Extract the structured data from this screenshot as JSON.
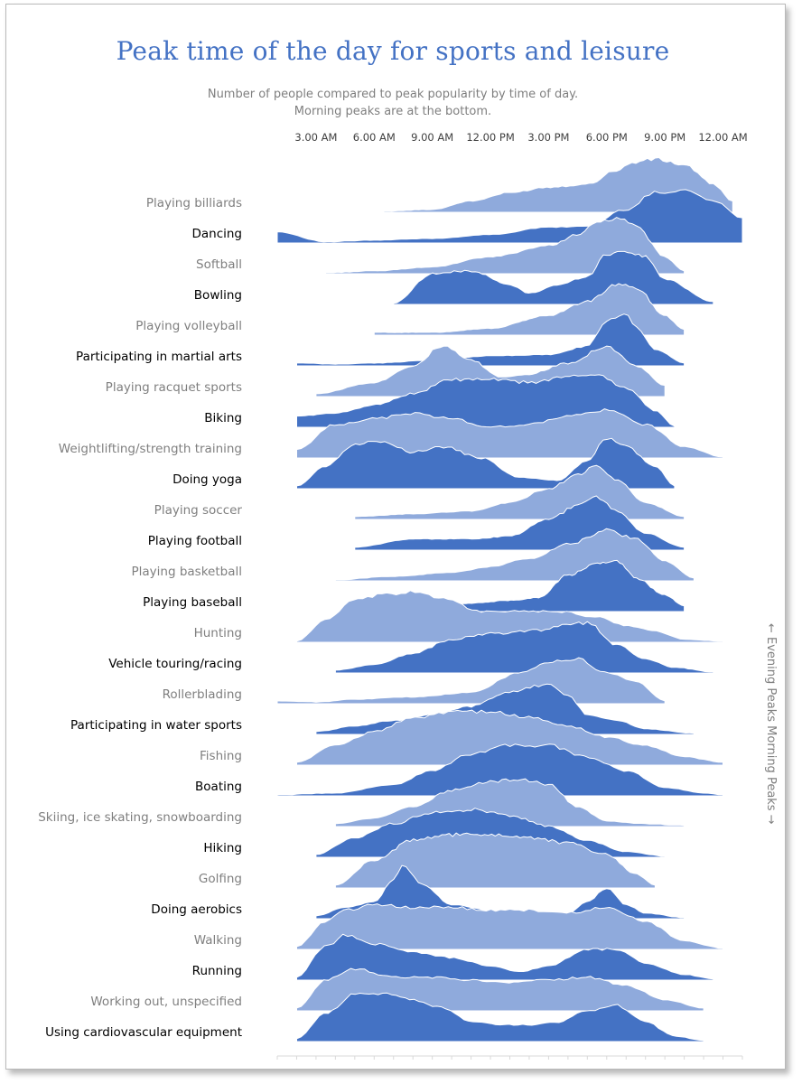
{
  "title": "Peak time of the day for sports and leisure",
  "subtitle_line1": "Number of people compared to peak popularity by time of day.",
  "subtitle_line2": "Morning peaks are at the bottom.",
  "side_label": "← Evening Peaks  Morning Peaks →",
  "colors": {
    "title": "#4472c4",
    "dark": "#4472c4",
    "light": "#8faadc",
    "label_light": "#7f7f7f",
    "label_dark": "#000000"
  },
  "chart_data": {
    "type": "area",
    "title": "Peak time of the day for sports and leisure",
    "x_ticks": [
      "3.00 AM",
      "6.00 AM",
      "9.00 AM",
      "12.00 PM",
      "3.00 PM",
      "6.00 PM",
      "9.00 PM",
      "12.00 AM"
    ],
    "x_tick_hours": [
      3,
      6,
      9,
      12,
      15,
      18,
      21,
      24
    ],
    "x_range_hours": [
      1,
      25
    ],
    "series": [
      {
        "name": "Playing billiards",
        "style": "light",
        "x": [
          6.5,
          9,
          11,
          13,
          15,
          17,
          18.5,
          19.5,
          20.5,
          22,
          23.5,
          24.5
        ],
        "y": [
          0.02,
          0.05,
          0.2,
          0.35,
          0.45,
          0.5,
          0.75,
          0.9,
          0.95,
          0.85,
          0.5,
          0.2
        ]
      },
      {
        "name": "Dancing",
        "style": "dark",
        "x": [
          1,
          3.5,
          6,
          9,
          12,
          15,
          17,
          19,
          20.5,
          22,
          23.5,
          25
        ],
        "y": [
          0.2,
          0.02,
          0.05,
          0.08,
          0.15,
          0.28,
          0.3,
          0.6,
          0.9,
          0.95,
          0.75,
          0.45
        ]
      },
      {
        "name": "Softball",
        "style": "light",
        "x": [
          3.5,
          6,
          9,
          12,
          15,
          16.5,
          17.5,
          18.5,
          19.5,
          21,
          22
        ],
        "y": [
          0.02,
          0.05,
          0.12,
          0.3,
          0.5,
          0.7,
          0.9,
          1.0,
          0.85,
          0.3,
          0.05
        ]
      },
      {
        "name": "Bowling",
        "style": "dark",
        "x": [
          7,
          9,
          11,
          13,
          14,
          15.5,
          17,
          18,
          19,
          20,
          21,
          23.5
        ],
        "y": [
          0.02,
          0.55,
          0.6,
          0.35,
          0.2,
          0.35,
          0.5,
          0.9,
          0.95,
          0.85,
          0.45,
          0.05
        ]
      },
      {
        "name": "Playing volleyball",
        "style": "light",
        "x": [
          6,
          9,
          12,
          15,
          17,
          18.5,
          19.5,
          21,
          22
        ],
        "y": [
          0.05,
          0.05,
          0.12,
          0.35,
          0.6,
          0.9,
          0.85,
          0.35,
          0.1
        ]
      },
      {
        "name": "Participating in martial arts",
        "style": "dark",
        "x": [
          2,
          4,
          6,
          9,
          12,
          15,
          17,
          18,
          19,
          19.5,
          20.5,
          22
        ],
        "y": [
          0.05,
          0.03,
          0.05,
          0.1,
          0.18,
          0.2,
          0.35,
          0.8,
          0.95,
          0.7,
          0.3,
          0.05
        ]
      },
      {
        "name": "Playing racquet sports",
        "style": "light",
        "x": [
          3,
          6,
          8,
          9.5,
          11,
          12.5,
          14,
          16,
          18,
          19.5,
          21
        ],
        "y": [
          0.05,
          0.25,
          0.55,
          0.9,
          0.65,
          0.35,
          0.4,
          0.6,
          0.9,
          0.55,
          0.2
        ]
      },
      {
        "name": "Biking",
        "style": "dark",
        "x": [
          2,
          4,
          6,
          8,
          10,
          12,
          14,
          16,
          17.5,
          19,
          20.5,
          21.5
        ],
        "y": [
          0.2,
          0.25,
          0.4,
          0.6,
          0.85,
          0.85,
          0.8,
          0.9,
          0.95,
          0.7,
          0.3,
          0.02
        ]
      },
      {
        "name": "Weightlifting/strength training",
        "style": "light",
        "x": [
          2,
          4,
          6,
          8,
          10,
          12,
          14,
          16,
          18,
          20,
          22,
          24
        ],
        "y": [
          0.15,
          0.6,
          0.7,
          0.8,
          0.7,
          0.55,
          0.6,
          0.75,
          0.85,
          0.6,
          0.2,
          0.02
        ]
      },
      {
        "name": "Doing yoga",
        "style": "dark",
        "x": [
          2,
          3.5,
          5,
          6.5,
          8,
          9.5,
          11.5,
          13.5,
          15.5,
          17,
          18,
          19,
          20.5,
          21.5
        ],
        "y": [
          0.05,
          0.4,
          0.8,
          0.85,
          0.65,
          0.75,
          0.55,
          0.2,
          0.15,
          0.5,
          0.9,
          0.75,
          0.4,
          0.05
        ]
      },
      {
        "name": "Playing soccer",
        "style": "light",
        "x": [
          5,
          8,
          11,
          13,
          15,
          16.5,
          17.5,
          18.5,
          20,
          22
        ],
        "y": [
          0.05,
          0.1,
          0.15,
          0.3,
          0.55,
          0.8,
          0.95,
          0.7,
          0.3,
          0.05
        ]
      },
      {
        "name": "Playing football",
        "style": "dark",
        "x": [
          5,
          8,
          11,
          13,
          15,
          16.5,
          17.5,
          18.5,
          20,
          22
        ],
        "y": [
          0.05,
          0.2,
          0.2,
          0.25,
          0.55,
          0.8,
          0.95,
          0.7,
          0.3,
          0.05
        ]
      },
      {
        "name": "Playing basketball",
        "style": "light",
        "x": [
          4,
          7,
          10,
          12,
          14,
          16,
          18,
          19.5,
          21,
          22.5
        ],
        "y": [
          0.02,
          0.08,
          0.15,
          0.25,
          0.4,
          0.65,
          0.9,
          0.75,
          0.35,
          0.05
        ]
      },
      {
        "name": "Playing baseball",
        "style": "dark",
        "x": [
          9,
          11,
          13,
          14.5,
          16,
          17.5,
          18.5,
          19.5,
          21,
          22
        ],
        "y": [
          0.05,
          0.15,
          0.2,
          0.25,
          0.65,
          0.85,
          0.9,
          0.6,
          0.3,
          0.1
        ]
      },
      {
        "name": "Hunting",
        "style": "light",
        "x": [
          2,
          3.5,
          5,
          6.5,
          8,
          9.5,
          11.5,
          13.5,
          15.5,
          17.5,
          19,
          20.5,
          22,
          24
        ],
        "y": [
          0.02,
          0.4,
          0.75,
          0.85,
          0.9,
          0.8,
          0.55,
          0.55,
          0.55,
          0.45,
          0.3,
          0.2,
          0.05,
          0.02
        ]
      },
      {
        "name": "Vehicle touring/racing",
        "style": "dark",
        "x": [
          4,
          6,
          8,
          10,
          12,
          14,
          16,
          17,
          18.5,
          20,
          21.5,
          23.5
        ],
        "y": [
          0.05,
          0.15,
          0.35,
          0.6,
          0.7,
          0.75,
          0.85,
          0.9,
          0.5,
          0.25,
          0.1,
          0.02
        ]
      },
      {
        "name": "Rollerblading",
        "style": "light",
        "x": [
          1,
          3,
          5,
          8,
          11,
          13.5,
          15,
          16.5,
          18,
          19.5,
          21
        ],
        "y": [
          0.05,
          0.03,
          0.08,
          0.12,
          0.2,
          0.55,
          0.75,
          0.8,
          0.55,
          0.4,
          0.05
        ]
      },
      {
        "name": "Participating in water sports",
        "style": "dark",
        "x": [
          3,
          5,
          7,
          9,
          11,
          13,
          15,
          16,
          17,
          18.5,
          20,
          22.5
        ],
        "y": [
          0.05,
          0.15,
          0.25,
          0.35,
          0.5,
          0.75,
          0.9,
          0.7,
          0.35,
          0.25,
          0.1,
          0.02
        ]
      },
      {
        "name": "Fishing",
        "style": "light",
        "x": [
          2,
          4,
          6,
          8,
          10,
          12,
          14,
          16,
          18,
          20,
          22,
          24
        ],
        "y": [
          0.05,
          0.35,
          0.6,
          0.85,
          0.95,
          0.95,
          0.85,
          0.7,
          0.5,
          0.35,
          0.15,
          0.05
        ]
      },
      {
        "name": "Boating",
        "style": "dark",
        "x": [
          1,
          4,
          7,
          9,
          11,
          13,
          15,
          17,
          19,
          21,
          23,
          24
        ],
        "y": [
          0.02,
          0.05,
          0.2,
          0.45,
          0.75,
          0.9,
          0.9,
          0.7,
          0.45,
          0.15,
          0.05,
          0.02
        ]
      },
      {
        "name": "Skiing, ice skating, snowboarding",
        "style": "light",
        "x": [
          4,
          6,
          8,
          10,
          12,
          13.5,
          15,
          16.5,
          18,
          20,
          22
        ],
        "y": [
          0.05,
          0.15,
          0.35,
          0.65,
          0.8,
          0.85,
          0.75,
          0.35,
          0.1,
          0.05,
          0.02
        ]
      },
      {
        "name": "Hiking",
        "style": "dark",
        "x": [
          3,
          5,
          7,
          9,
          11,
          13,
          15,
          17,
          19,
          21
        ],
        "y": [
          0.05,
          0.35,
          0.6,
          0.8,
          0.85,
          0.75,
          0.55,
          0.3,
          0.1,
          0.02
        ]
      },
      {
        "name": "Golfing",
        "style": "light",
        "x": [
          4,
          6,
          8,
          10,
          12,
          14,
          16,
          18,
          19.5,
          20.5
        ],
        "y": [
          0.05,
          0.5,
          0.85,
          0.95,
          0.95,
          0.9,
          0.8,
          0.6,
          0.25,
          0.05
        ]
      },
      {
        "name": "Doing aerobics",
        "style": "dark",
        "x": [
          3,
          4.5,
          6,
          7,
          7.5,
          8.5,
          10,
          12,
          14,
          16,
          17,
          18,
          19,
          20,
          22
        ],
        "y": [
          0.05,
          0.2,
          0.3,
          0.7,
          0.95,
          0.6,
          0.25,
          0.15,
          0.1,
          0.1,
          0.3,
          0.55,
          0.25,
          0.1,
          0.02
        ]
      },
      {
        "name": "Walking",
        "style": "light",
        "x": [
          2,
          3.5,
          4.5,
          6,
          8,
          10,
          12,
          14,
          16,
          18,
          20,
          22,
          24
        ],
        "y": [
          0.05,
          0.5,
          0.7,
          0.8,
          0.75,
          0.75,
          0.7,
          0.7,
          0.65,
          0.75,
          0.5,
          0.15,
          0.02
        ]
      },
      {
        "name": "Running",
        "style": "dark",
        "x": [
          2,
          3.5,
          4.5,
          6,
          8,
          10,
          12,
          13.5,
          15,
          17,
          18.5,
          20,
          22,
          23.5
        ],
        "y": [
          0.05,
          0.6,
          0.8,
          0.65,
          0.5,
          0.4,
          0.25,
          0.15,
          0.25,
          0.55,
          0.55,
          0.3,
          0.1,
          0.02
        ]
      },
      {
        "name": "Working out, unspecified",
        "style": "light",
        "x": [
          2,
          3.5,
          5,
          7,
          9,
          11,
          13,
          15,
          17,
          19,
          21,
          23
        ],
        "y": [
          0.05,
          0.55,
          0.75,
          0.6,
          0.6,
          0.55,
          0.5,
          0.55,
          0.6,
          0.45,
          0.2,
          0.05
        ]
      },
      {
        "name": "Using cardiovascular equipment",
        "style": "dark",
        "x": [
          2,
          3.5,
          5,
          6.5,
          8,
          9.5,
          11,
          12.5,
          14,
          15.5,
          17,
          18.5,
          20,
          21.5,
          23
        ],
        "y": [
          0.05,
          0.5,
          0.85,
          0.85,
          0.75,
          0.6,
          0.35,
          0.3,
          0.3,
          0.35,
          0.55,
          0.65,
          0.35,
          0.1,
          0.02
        ]
      }
    ]
  }
}
